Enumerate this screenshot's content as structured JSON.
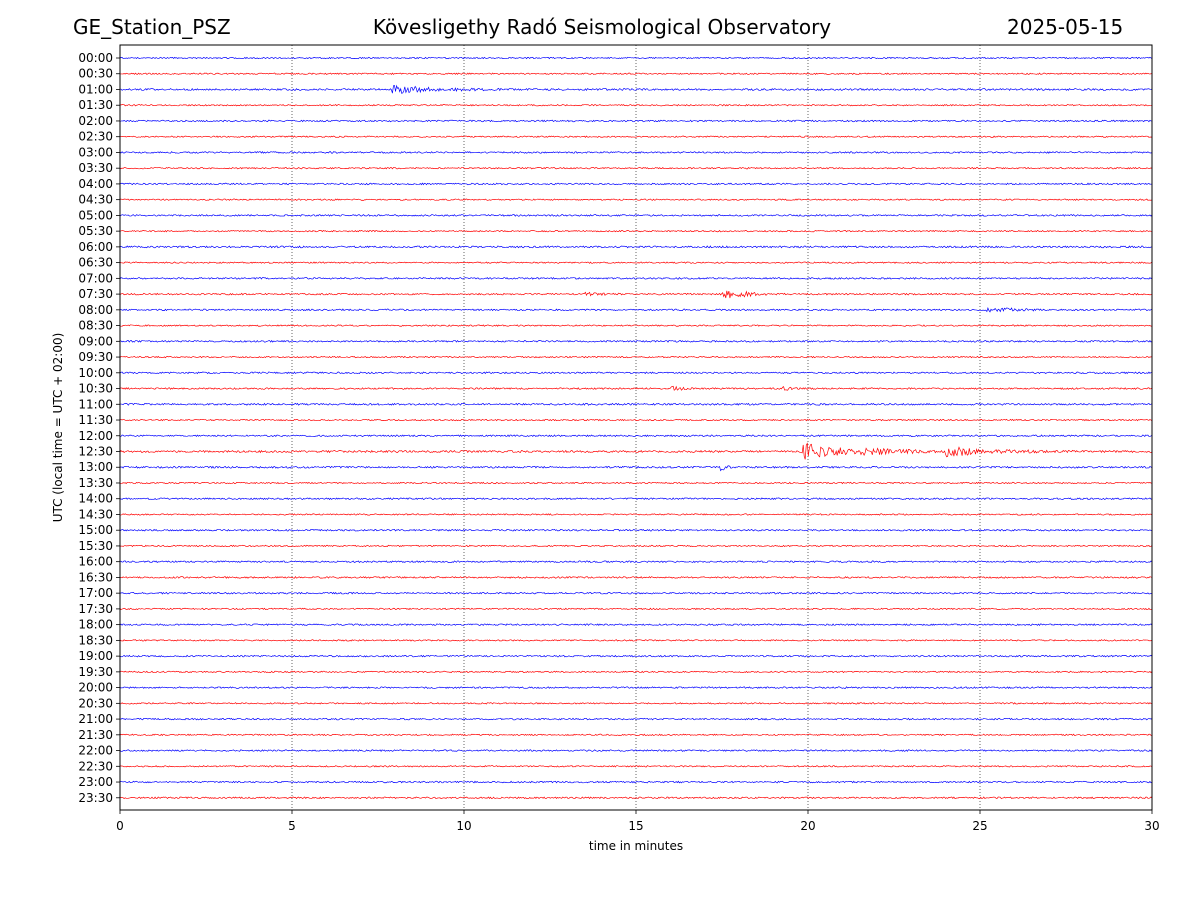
{
  "header": {
    "station": "GE_Station_PSZ",
    "observatory": "Kövesligethy Radó Seismological Observatory",
    "date": "2025-05-15"
  },
  "chart_data": {
    "type": "line",
    "title": "Kövesligethy Radó Seismological Observatory",
    "xlabel": "time in minutes",
    "ylabel": "UTC (local time = UTC + 02:00)",
    "xlim": [
      0,
      30
    ],
    "xticks": [
      0,
      5,
      10,
      15,
      20,
      25,
      30
    ],
    "grid": "vertical dotted at 5-minute ticks",
    "colors": {
      "even_hour_trace": "#0000ff",
      "half_hour_trace": "#ff0000",
      "grid": "#000000"
    },
    "traces": [
      {
        "label": "00:00",
        "noise": 0.7,
        "events": []
      },
      {
        "label": "00:30",
        "noise": 0.7,
        "events": []
      },
      {
        "label": "01:00",
        "noise": 0.9,
        "events": [
          {
            "start": 7.9,
            "end": 9.5,
            "amp": 5
          },
          {
            "start": 9.5,
            "end": 12.8,
            "amp": 1.8
          }
        ]
      },
      {
        "label": "01:30",
        "noise": 0.7,
        "events": []
      },
      {
        "label": "02:00",
        "noise": 0.8,
        "events": []
      },
      {
        "label": "02:30",
        "noise": 0.7,
        "events": []
      },
      {
        "label": "03:00",
        "noise": 0.8,
        "events": []
      },
      {
        "label": "03:30",
        "noise": 0.7,
        "events": []
      },
      {
        "label": "04:00",
        "noise": 0.8,
        "events": []
      },
      {
        "label": "04:30",
        "noise": 0.7,
        "events": []
      },
      {
        "label": "05:00",
        "noise": 0.8,
        "events": []
      },
      {
        "label": "05:30",
        "noise": 0.7,
        "events": []
      },
      {
        "label": "06:00",
        "noise": 0.9,
        "events": []
      },
      {
        "label": "06:30",
        "noise": 0.7,
        "events": []
      },
      {
        "label": "07:00",
        "noise": 0.8,
        "events": []
      },
      {
        "label": "07:30",
        "noise": 0.8,
        "events": [
          {
            "start": 13.5,
            "end": 15.0,
            "amp": 2
          },
          {
            "start": 17.5,
            "end": 18.8,
            "amp": 5
          }
        ]
      },
      {
        "label": "08:00",
        "noise": 0.8,
        "events": [
          {
            "start": 25.2,
            "end": 27.2,
            "amp": 2.5
          }
        ]
      },
      {
        "label": "08:30",
        "noise": 0.7,
        "events": []
      },
      {
        "label": "09:00",
        "noise": 0.8,
        "events": []
      },
      {
        "label": "09:30",
        "noise": 0.7,
        "events": []
      },
      {
        "label": "10:00",
        "noise": 0.8,
        "events": []
      },
      {
        "label": "10:30",
        "noise": 0.8,
        "events": [
          {
            "start": 16.0,
            "end": 16.8,
            "amp": 2.5
          },
          {
            "start": 19.2,
            "end": 19.8,
            "amp": 2.5
          }
        ]
      },
      {
        "label": "11:00",
        "noise": 0.9,
        "events": []
      },
      {
        "label": "11:30",
        "noise": 0.7,
        "events": []
      },
      {
        "label": "12:00",
        "noise": 0.8,
        "events": []
      },
      {
        "label": "12:30",
        "noise": 1.0,
        "events": [
          {
            "start": 19.8,
            "end": 21.5,
            "amp": 9
          },
          {
            "start": 21.5,
            "end": 24.0,
            "amp": 4
          },
          {
            "start": 24.0,
            "end": 25.3,
            "amp": 6
          },
          {
            "start": 25.3,
            "end": 30.0,
            "amp": 2
          }
        ]
      },
      {
        "label": "13:00",
        "noise": 0.9,
        "events": [
          {
            "start": 17.4,
            "end": 17.8,
            "amp": 4
          }
        ]
      },
      {
        "label": "13:30",
        "noise": 0.7,
        "events": []
      },
      {
        "label": "14:00",
        "noise": 0.8,
        "events": []
      },
      {
        "label": "14:30",
        "noise": 0.7,
        "events": []
      },
      {
        "label": "15:00",
        "noise": 0.8,
        "events": []
      },
      {
        "label": "15:30",
        "noise": 0.7,
        "events": []
      },
      {
        "label": "16:00",
        "noise": 0.8,
        "events": []
      },
      {
        "label": "16:30",
        "noise": 0.8,
        "events": []
      },
      {
        "label": "17:00",
        "noise": 0.8,
        "events": []
      },
      {
        "label": "17:30",
        "noise": 0.7,
        "events": []
      },
      {
        "label": "18:00",
        "noise": 0.8,
        "events": []
      },
      {
        "label": "18:30",
        "noise": 0.7,
        "events": []
      },
      {
        "label": "19:00",
        "noise": 0.8,
        "events": []
      },
      {
        "label": "19:30",
        "noise": 0.7,
        "events": []
      },
      {
        "label": "20:00",
        "noise": 0.8,
        "events": []
      },
      {
        "label": "20:30",
        "noise": 0.7,
        "events": []
      },
      {
        "label": "21:00",
        "noise": 0.8,
        "events": []
      },
      {
        "label": "21:30",
        "noise": 0.7,
        "events": []
      },
      {
        "label": "22:00",
        "noise": 0.8,
        "events": []
      },
      {
        "label": "22:30",
        "noise": 0.7,
        "events": []
      },
      {
        "label": "23:00",
        "noise": 0.8,
        "events": []
      },
      {
        "label": "23:30",
        "noise": 0.8,
        "events": []
      }
    ]
  }
}
